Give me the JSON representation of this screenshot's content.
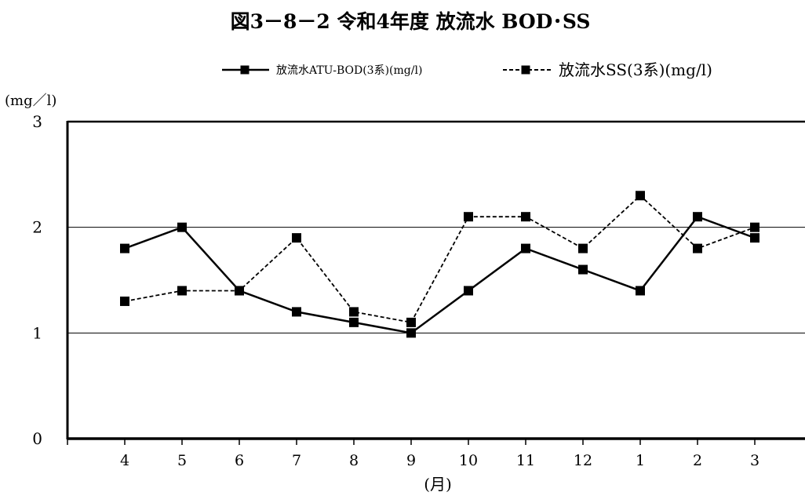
{
  "chart_data": {
    "type": "line",
    "title": "図3－8－2 令和4年度 放流水 BOD･SS",
    "ylabel": "(mg／l)",
    "xlabel": "(月)",
    "categories": [
      "4",
      "5",
      "6",
      "7",
      "8",
      "9",
      "10",
      "11",
      "12",
      "1",
      "2",
      "3"
    ],
    "ylim": [
      0,
      3
    ],
    "yticks": [
      "0",
      "1",
      "2",
      "3"
    ],
    "grid": true,
    "legend_position": "top",
    "series": [
      {
        "name": "放流水ATU-BOD(3系)(mg/l)",
        "values": [
          1.8,
          2.0,
          1.4,
          1.2,
          1.1,
          1.0,
          1.4,
          1.8,
          1.6,
          1.4,
          2.1,
          1.9
        ],
        "line_style": "solid",
        "marker": "square",
        "color": "#000000"
      },
      {
        "name": "放流水SS(3系)(mg/l)",
        "values": [
          1.3,
          1.4,
          1.4,
          1.9,
          1.2,
          1.1,
          2.1,
          2.1,
          1.8,
          2.3,
          1.8,
          2.0
        ],
        "line_style": "dashed",
        "marker": "square",
        "color": "#000000"
      }
    ]
  }
}
